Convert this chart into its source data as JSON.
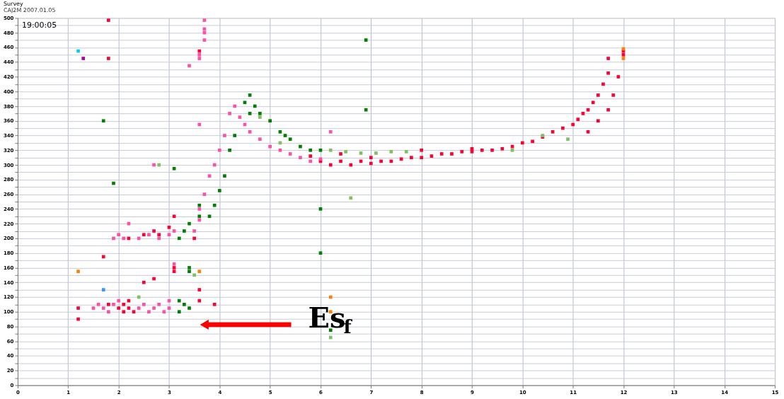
{
  "chart_data": {
    "type": "scatter",
    "title": "Survey",
    "subtitle": "CAJ2M 2007.01.05",
    "xlim": [
      0,
      15
    ],
    "xticks": [
      0,
      1,
      2,
      3,
      4,
      5,
      6,
      7,
      8,
      9,
      10,
      11,
      12,
      13,
      14,
      15
    ],
    "ylim": [
      0,
      500
    ],
    "yticks": [
      0,
      {
        "value": 10,
        "label": null
      },
      20,
      {
        "value": 30,
        "label": null
      },
      40,
      {
        "value": 50,
        "label": null
      },
      60,
      {
        "value": 70,
        "label": null
      },
      80,
      {
        "value": 90,
        "label": null
      },
      100,
      {
        "value": 110,
        "label": null
      },
      120,
      {
        "value": 130,
        "label": null
      },
      140,
      {
        "value": 150,
        "label": null
      },
      160,
      {
        "value": 170,
        "label": null
      },
      180,
      {
        "value": 190,
        "label": null
      },
      200,
      {
        "value": 210,
        "label": null
      },
      220,
      {
        "value": 230,
        "label": null
      },
      240,
      {
        "value": 250,
        "label": null
      },
      260,
      {
        "value": 270,
        "label": null
      },
      280,
      {
        "value": 290,
        "label": null
      },
      300,
      {
        "value": 310,
        "label": null
      },
      320,
      {
        "value": 330,
        "label": null
      },
      340,
      {
        "value": 350,
        "label": null
      },
      360,
      {
        "value": 370,
        "label": null
      },
      380,
      {
        "value": 390,
        "label": null
      },
      400,
      {
        "value": 410,
        "label": null
      },
      420,
      {
        "value": 430,
        "label": null
      },
      440,
      {
        "value": 450,
        "label": null
      },
      460,
      {
        "value": 470,
        "label": null
      },
      480,
      {
        "value": 490,
        "label": null
      },
      500
    ],
    "grid": true,
    "marker": "square",
    "annotations": [
      "19:00:05",
      "Es$_{f}$"
    ],
    "series": [
      {
        "color": "#ff0033",
        "x": [
          1.2,
          1.2,
          1.8,
          2.0,
          2.1,
          2.1,
          2.2,
          2.2,
          2.3,
          2.5,
          2.7,
          3.1,
          3.1,
          3.6,
          3.6,
          3.9,
          2.2,
          2.5,
          2.7,
          2.8,
          3.0,
          3.1,
          3.5,
          1.7,
          1.8,
          1.8,
          3.6,
          5.8,
          6.0,
          6.2,
          6.4,
          6.6,
          6.8,
          7.0,
          7.2,
          7.4,
          7.6,
          7.8,
          8.0,
          8.2,
          8.4,
          8.6,
          8.8,
          9.0,
          9.2,
          9.4,
          9.6,
          9.8,
          10.0,
          10.2,
          10.4,
          10.6,
          10.8,
          11.0,
          11.1,
          11.2,
          11.3,
          11.4,
          11.5,
          11.6,
          11.7,
          11.7,
          11.3,
          11.5,
          11.7,
          11.8,
          11.9,
          12.0,
          12.0,
          6.4,
          7.0,
          8.0,
          9.0
        ],
        "values": [
          105,
          90,
          110,
          105,
          100,
          110,
          105,
          115,
          100,
          140,
          145,
          160,
          155,
          130,
          115,
          110,
          200,
          205,
          210,
          205,
          215,
          230,
          200,
          175,
          497,
          445,
          455,
          312,
          305,
          300,
          305,
          300,
          305,
          302,
          305,
          305,
          308,
          310,
          310,
          312,
          315,
          315,
          318,
          318,
          320,
          320,
          322,
          325,
          330,
          332,
          338,
          345,
          350,
          355,
          362,
          370,
          375,
          385,
          395,
          410,
          425,
          445,
          345,
          360,
          375,
          395,
          420,
          450,
          455,
          315,
          310,
          320,
          322
        ]
      },
      {
        "color": "#ff4fa8",
        "x": [
          1.5,
          1.6,
          1.7,
          1.8,
          1.9,
          2.0,
          2.4,
          2.5,
          2.6,
          2.7,
          2.8,
          2.9,
          3.0,
          3.0,
          3.1,
          1.9,
          2.0,
          2.1,
          2.2,
          2.4,
          2.6,
          2.8,
          3.0,
          3.1,
          2.7,
          3.6,
          3.5,
          3.6,
          3.7,
          3.8,
          3.9,
          4.0,
          4.1,
          4.2,
          4.3,
          4.4,
          4.5,
          4.6,
          4.8,
          5.0,
          5.2,
          5.4,
          5.6,
          5.8,
          6.0,
          3.7,
          3.7,
          3.7,
          3.7,
          3.6,
          3.6,
          3.4,
          3.6,
          6.2
        ],
        "values": [
          105,
          110,
          105,
          100,
          110,
          115,
          105,
          110,
          100,
          105,
          110,
          100,
          105,
          115,
          165,
          200,
          205,
          200,
          220,
          200,
          205,
          200,
          205,
          210,
          300,
          225,
          210,
          240,
          260,
          285,
          300,
          320,
          340,
          370,
          380,
          365,
          355,
          345,
          335,
          325,
          320,
          315,
          310,
          305,
          308,
          497,
          485,
          480,
          470,
          450,
          445,
          435,
          355,
          345
        ]
      },
      {
        "color": "#008000",
        "x": [
          3.2,
          3.3,
          3.4,
          3.2,
          3.4,
          3.4,
          3.2,
          3.3,
          3.4,
          3.6,
          3.6,
          3.8,
          3.9,
          4.0,
          4.1,
          4.2,
          4.3,
          4.5,
          4.6,
          4.7,
          4.8,
          5.0,
          5.2,
          5.4,
          5.6,
          5.8,
          6.0,
          4.6,
          5.3,
          6.0,
          6.0,
          6.2,
          1.7,
          1.9,
          3.1,
          6.9,
          6.9
        ],
        "values": [
          100,
          110,
          105,
          115,
          160,
          155,
          200,
          210,
          220,
          230,
          245,
          230,
          245,
          265,
          285,
          320,
          340,
          385,
          395,
          380,
          370,
          360,
          345,
          335,
          325,
          320,
          320,
          370,
          340,
          240,
          180,
          75,
          360,
          275,
          295,
          470,
          375
        ]
      },
      {
        "color": "#80c060",
        "x": [
          6.2,
          6.5,
          6.8,
          7.1,
          7.4,
          7.7,
          5.2,
          4.8,
          9.8,
          10.4,
          10.9,
          6.2,
          6.6,
          3.5,
          2.4,
          2.8
        ],
        "values": [
          320,
          318,
          316,
          316,
          318,
          318,
          330,
          365,
          320,
          340,
          335,
          65,
          255,
          150,
          120,
          300
        ]
      },
      {
        "color": "#ff8000",
        "x": [
          1.2,
          3.6,
          6.2,
          6.2,
          12.0,
          12.0
        ],
        "values": [
          155,
          155,
          100,
          120,
          458,
          445
        ]
      },
      {
        "color": "#00ccff",
        "x": [
          1.2
        ],
        "values": [
          455
        ]
      },
      {
        "color": "#3399ff",
        "x": [
          1.7
        ],
        "values": [
          130
        ]
      },
      {
        "color": "#aa00aa",
        "x": [
          1.3
        ],
        "values": [
          445
        ]
      }
    ]
  }
}
